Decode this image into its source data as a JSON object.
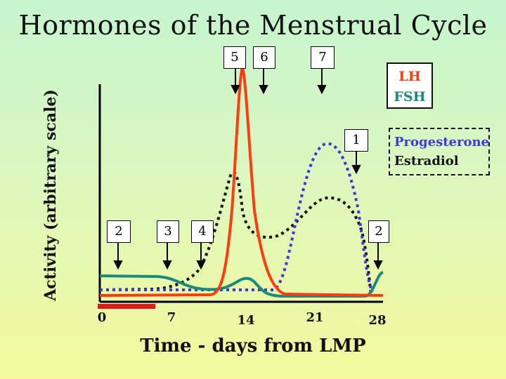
{
  "title": "Hormones of the Menstrual Cycle",
  "ylabel": "Activity (arbitrary scale)",
  "xlabel": "Time - days from LMP",
  "x_ticks": [
    "0",
    "7",
    "14",
    "21",
    "28"
  ],
  "legend": {
    "lh": "LH",
    "fsh": "FSH",
    "progesterone": "Progesterone",
    "estradiol": "Estradiol"
  },
  "markers": [
    {
      "label": "5"
    },
    {
      "label": "6"
    },
    {
      "label": "7"
    },
    {
      "label": "1"
    },
    {
      "label": "2"
    },
    {
      "label": "3"
    },
    {
      "label": "4"
    },
    {
      "label": "2"
    }
  ],
  "colors": {
    "lh": "#ff3b10",
    "fsh": "#1b8a7a",
    "progesterone": "#3a3ad6",
    "estradiol": "#111111",
    "menses_bar": "#e01a1a"
  }
}
